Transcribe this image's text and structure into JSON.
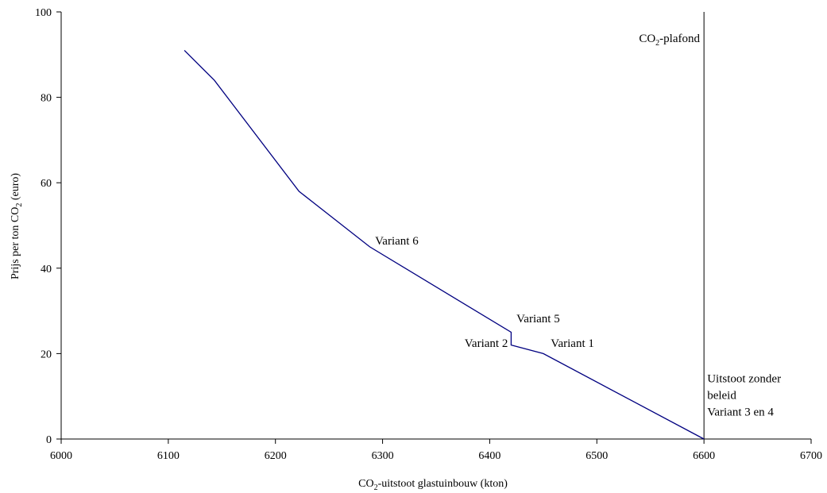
{
  "chart_data": {
    "type": "line",
    "title": "",
    "xlabel": {
      "pre": "CO",
      "sub": "2",
      "post": "-uitstoot glastuinbouw (kton)"
    },
    "ylabel": {
      "pre": "Prijs per ton CO",
      "sub": "2",
      "post": " (euro)"
    },
    "xlim": [
      6000,
      6700
    ],
    "ylim": [
      0,
      100
    ],
    "xticks": [
      6000,
      6100,
      6200,
      6300,
      6400,
      6500,
      6600,
      6700
    ],
    "yticks": [
      0,
      20,
      40,
      60,
      80,
      100
    ],
    "grid": false,
    "series": [
      {
        "color": "#000080",
        "points": [
          [
            6115,
            91
          ],
          [
            6143,
            84
          ],
          [
            6222,
            58
          ],
          [
            6288,
            45
          ],
          [
            6420,
            25
          ],
          [
            6420,
            22
          ],
          [
            6450,
            20
          ],
          [
            6600,
            0
          ]
        ]
      }
    ],
    "vline": {
      "x": 6600,
      "color": "#000000"
    },
    "annotations": [
      {
        "text": "Variant 6",
        "x": 6293,
        "y": 45.5,
        "anchor": "start"
      },
      {
        "text": "Variant 5",
        "x": 6425,
        "y": 27.3,
        "anchor": "start"
      },
      {
        "text": "Variant 2",
        "x": 6417,
        "y": 21.6,
        "anchor": "end"
      },
      {
        "text": "Variant 1",
        "x": 6457,
        "y": 21.6,
        "anchor": "start"
      },
      {
        "text": "Uitstoot zonder",
        "x": 6603,
        "y": 13.3,
        "anchor": "start"
      },
      {
        "text": "beleid",
        "x": 6603,
        "y": 9.4,
        "anchor": "start"
      },
      {
        "text": "Variant 3 en 4",
        "x": 6603,
        "y": 5.5,
        "anchor": "start"
      }
    ],
    "co2_label": {
      "pre": "CO",
      "sub": "2",
      "post": "-plafond"
    }
  }
}
